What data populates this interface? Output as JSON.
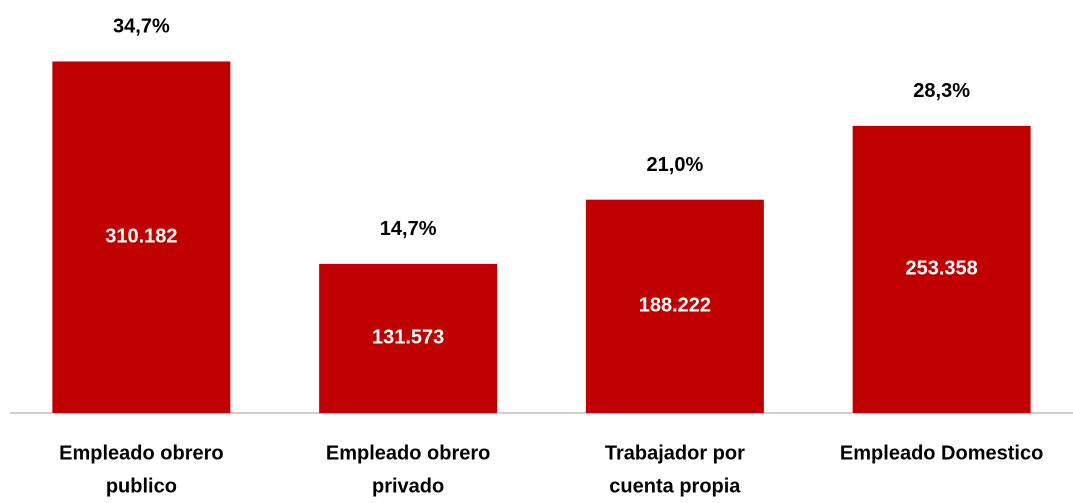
{
  "chart_data": {
    "type": "bar",
    "categories": [
      [
        "Empleado obrero",
        "publico"
      ],
      [
        "Empleado obrero",
        "privado"
      ],
      [
        "Trabajador por",
        "cuenta propia"
      ],
      [
        "Empleado Domestico"
      ]
    ],
    "values": [
      310182,
      131573,
      188222,
      253358
    ],
    "value_labels": [
      "310.182",
      "131.573",
      "188.222",
      "253.358"
    ],
    "percent_values": [
      34.7,
      14.7,
      21.0,
      28.3
    ],
    "percent_labels": [
      "34,7%",
      "14,7%",
      "21,0%",
      "28,3%"
    ],
    "color": "#c00000",
    "ylim": [
      0,
      360000
    ]
  }
}
